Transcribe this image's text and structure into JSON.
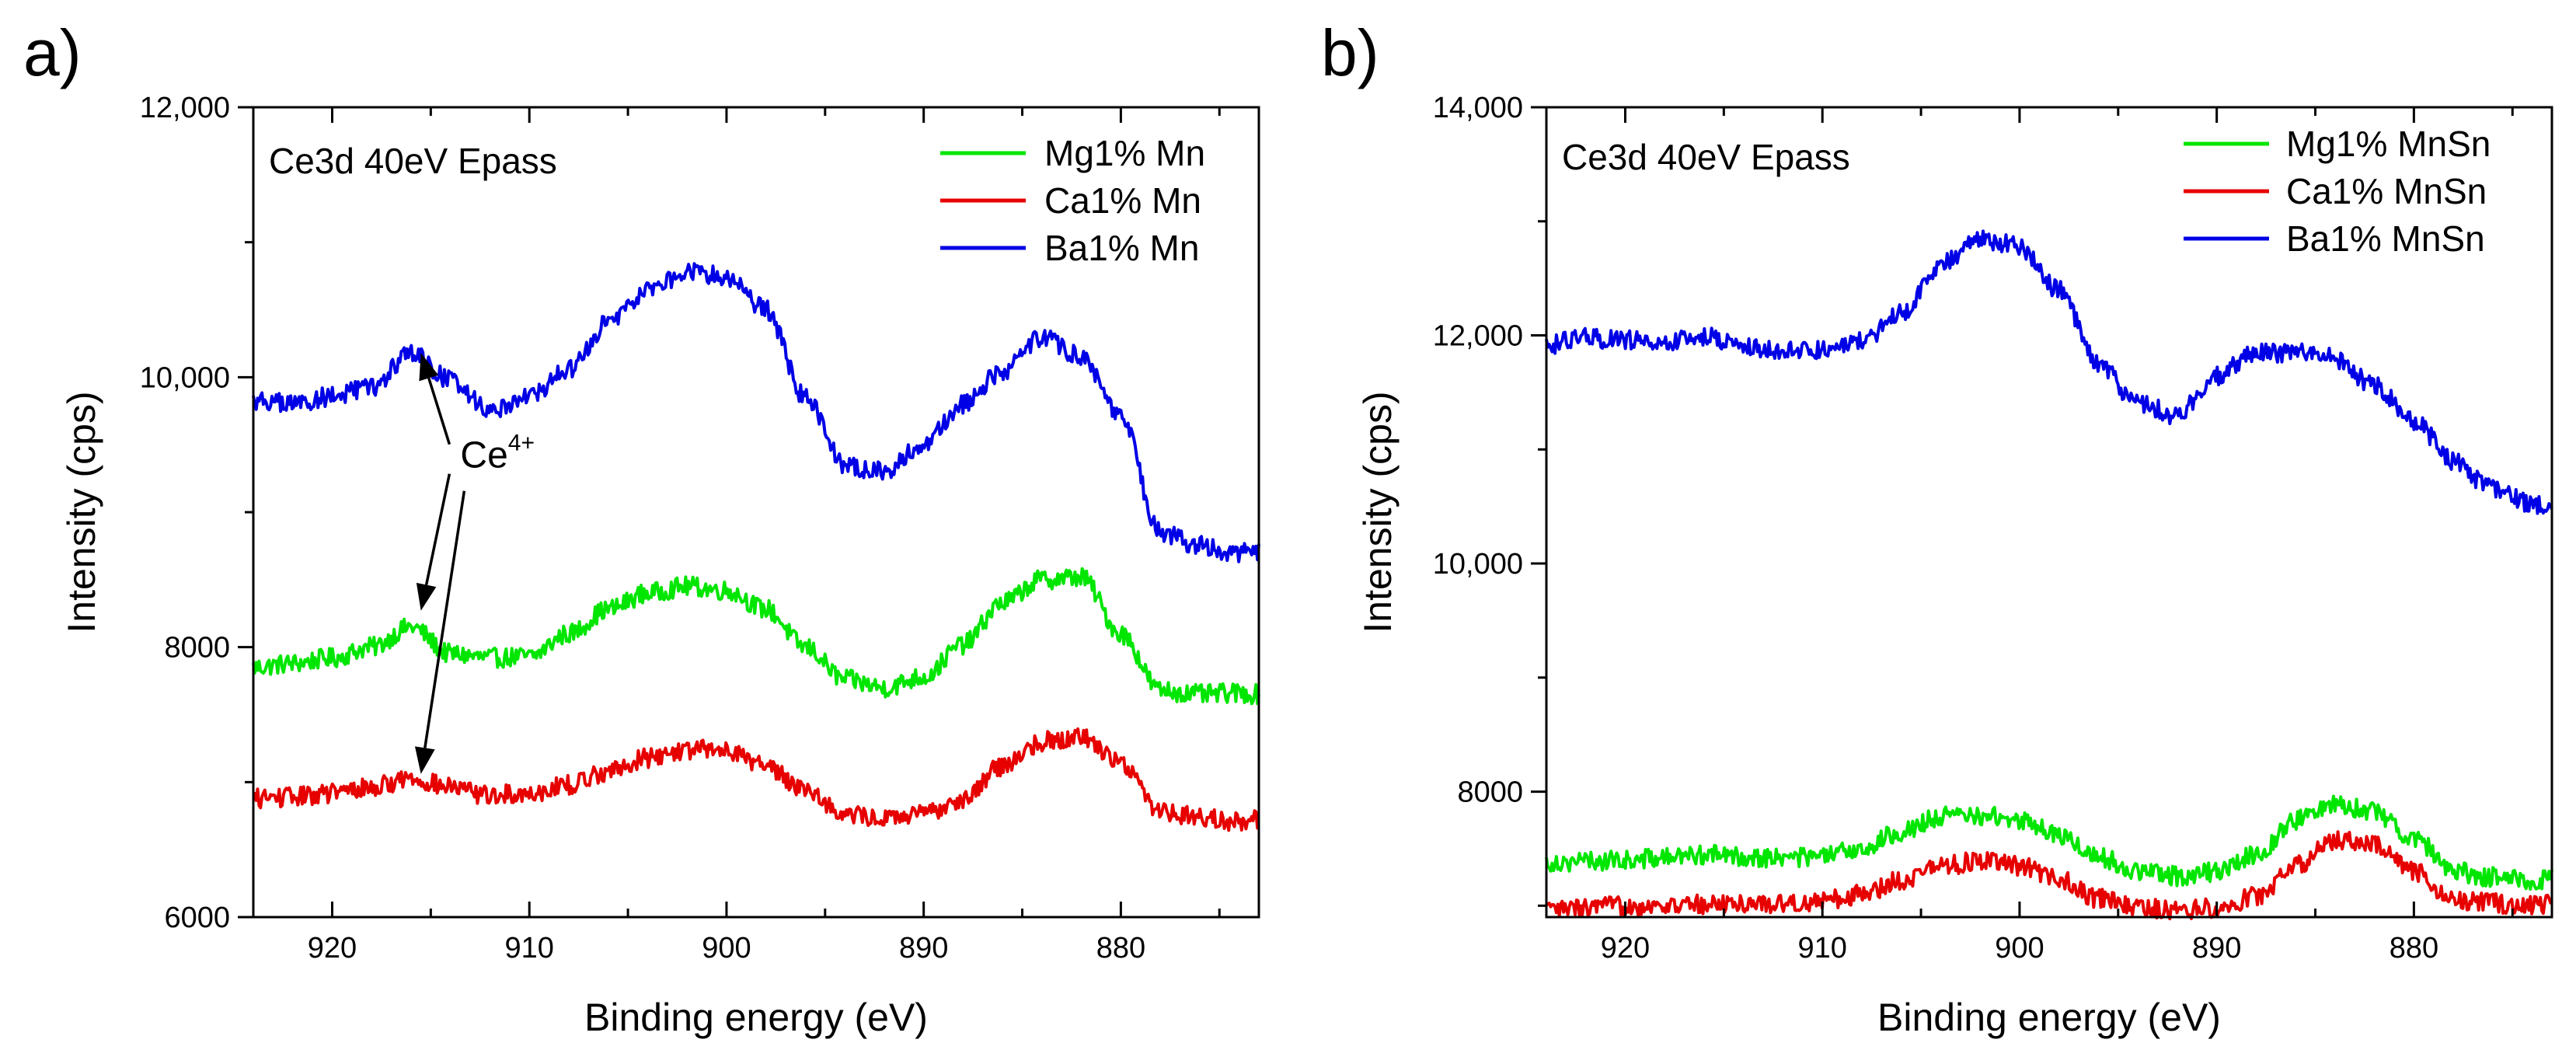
{
  "chart_data": [
    {
      "panel_label": "a)",
      "type": "line",
      "title": "Ce3d 40eV Epass",
      "xlabel": "Binding energy (eV)",
      "ylabel": "Intensity (cps)",
      "xlim": [
        924,
        873
      ],
      "ylim": [
        6000,
        12000
      ],
      "x_ticks": [
        920,
        910,
        900,
        890,
        880
      ],
      "x_tick_labels": [
        "920",
        "910",
        "900",
        "890",
        "880"
      ],
      "y_ticks": [
        6000,
        8000,
        10000,
        12000
      ],
      "y_tick_labels": [
        "6000",
        "8000",
        "10,000",
        "12,000"
      ],
      "legend_position": "top-right",
      "series": [
        {
          "name": "Mg1% Mn",
          "color": "#00e600",
          "x": [
            924,
            922,
            920,
            918,
            916,
            914,
            912,
            910,
            908,
            906,
            904,
            902,
            900,
            898,
            896,
            894,
            892,
            890,
            888,
            886,
            884,
            882,
            880,
            878,
            876,
            874,
            873
          ],
          "values": [
            7850,
            7880,
            7920,
            8000,
            8150,
            7950,
            7920,
            7930,
            8100,
            8280,
            8400,
            8450,
            8420,
            8280,
            8000,
            7760,
            7700,
            7780,
            8020,
            8330,
            8500,
            8520,
            8100,
            7680,
            7650,
            7660,
            7650
          ]
        },
        {
          "name": "Ca1% Mn",
          "color": "#e60000",
          "x": [
            924,
            922,
            920,
            918,
            916,
            914,
            912,
            910,
            908,
            906,
            904,
            902,
            900,
            898,
            896,
            894,
            892,
            890,
            888,
            886,
            884,
            882,
            880,
            878,
            876,
            874,
            873
          ],
          "values": [
            6880,
            6890,
            6920,
            6960,
            7030,
            6960,
            6900,
            6920,
            6980,
            7080,
            7180,
            7240,
            7240,
            7120,
            6950,
            6760,
            6730,
            6760,
            6880,
            7120,
            7300,
            7340,
            7150,
            6790,
            6740,
            6710,
            6720
          ]
        },
        {
          "name": "Ba1% Mn",
          "color": "#0000e6",
          "x": [
            924,
            922,
            920,
            918,
            916,
            914,
            912,
            910,
            908,
            906,
            904,
            902,
            900,
            898,
            896,
            894,
            892,
            890,
            888,
            886,
            884,
            882,
            880,
            878,
            876,
            874,
            873
          ],
          "values": [
            9830,
            9800,
            9860,
            9920,
            10180,
            9980,
            9760,
            9860,
            10050,
            10400,
            10650,
            10780,
            10750,
            10500,
            9850,
            9350,
            9300,
            9500,
            9800,
            10050,
            10300,
            10150,
            9700,
            8850,
            8750,
            8700,
            8700
          ]
        }
      ],
      "annotations": [
        {
          "text": "Ce",
          "superscript": "4+",
          "x": 913.5,
          "y": 9330,
          "arrows_to": [
            [
              915.5,
              10180
            ],
            [
              915.5,
              8270
            ],
            [
              915.5,
              7060
            ]
          ]
        }
      ]
    },
    {
      "panel_label": "b)",
      "type": "line",
      "title": "Ce3d 40eV Epass",
      "xlabel": "Binding energy (eV)",
      "ylabel": "Intensity (cps)",
      "xlim": [
        924,
        873
      ],
      "ylim": [
        6900,
        14000
      ],
      "x_ticks": [
        920,
        910,
        900,
        890,
        880
      ],
      "x_tick_labels": [
        "920",
        "910",
        "900",
        "890",
        "880"
      ],
      "y_ticks": [
        8000,
        10000,
        12000,
        14000
      ],
      "y_tick_labels": [
        "8000",
        "10,000",
        "12,000",
        "14,000"
      ],
      "legend_position": "top-right",
      "series": [
        {
          "name": "Mg1% MnSn",
          "color": "#00e600",
          "x": [
            924,
            922,
            920,
            918,
            916,
            914,
            912,
            910,
            908,
            906,
            904,
            902,
            900,
            898,
            896,
            894,
            892,
            890,
            888,
            886,
            884,
            882,
            880,
            878,
            876,
            874,
            873
          ],
          "values": [
            7380,
            7390,
            7400,
            7420,
            7450,
            7430,
            7420,
            7430,
            7500,
            7650,
            7780,
            7790,
            7750,
            7620,
            7430,
            7300,
            7260,
            7300,
            7450,
            7750,
            7900,
            7820,
            7600,
            7300,
            7250,
            7220,
            7230
          ]
        },
        {
          "name": "Ca1% MnSn",
          "color": "#e60000",
          "x": [
            924,
            922,
            920,
            918,
            916,
            914,
            912,
            910,
            908,
            906,
            904,
            902,
            900,
            898,
            896,
            894,
            892,
            890,
            888,
            886,
            884,
            882,
            880,
            878,
            876,
            874,
            873
          ],
          "values": [
            6960,
            6980,
            7000,
            7000,
            7010,
            7020,
            7020,
            7040,
            7100,
            7230,
            7350,
            7390,
            7350,
            7230,
            7060,
            6980,
            6960,
            6980,
            7080,
            7350,
            7580,
            7530,
            7300,
            7050,
            7020,
            7000,
            7010
          ]
        },
        {
          "name": "Ba1% MnSn",
          "color": "#0000e6",
          "x": [
            924,
            922,
            920,
            918,
            916,
            914,
            912,
            910,
            908,
            906,
            904,
            902,
            900,
            898,
            896,
            894,
            892,
            890,
            888,
            886,
            884,
            882,
            880,
            878,
            876,
            874,
            873
          ],
          "values": [
            11920,
            11980,
            11960,
            11930,
            11990,
            11900,
            11860,
            11870,
            11950,
            12200,
            12620,
            12850,
            12780,
            12400,
            11750,
            11400,
            11300,
            11650,
            11840,
            11850,
            11800,
            11550,
            11250,
            10900,
            10650,
            10520,
            10480
          ]
        }
      ],
      "annotations": []
    }
  ]
}
